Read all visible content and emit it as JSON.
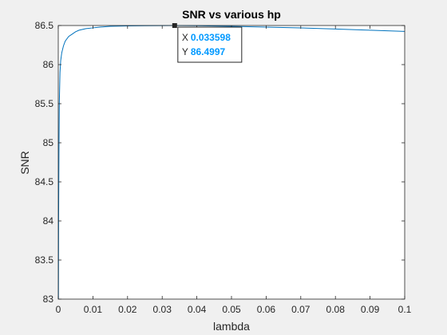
{
  "chart_data": {
    "type": "line",
    "title": "SNR vs various hp",
    "xlabel": "lambda",
    "ylabel": "SNR",
    "xlim": [
      0,
      0.1
    ],
    "ylim": [
      83,
      86.5
    ],
    "x_ticks": [
      "0",
      "0.01",
      "0.02",
      "0.03",
      "0.04",
      "0.05",
      "0.06",
      "0.07",
      "0.08",
      "0.09",
      "0.1"
    ],
    "y_ticks": [
      "83",
      "83.5",
      "84",
      "84.5",
      "85",
      "85.5",
      "86",
      "86.5"
    ],
    "grid": false,
    "series": [
      {
        "color": "#0072bd",
        "x": [
          5e-05,
          0.0001,
          0.0002,
          0.0003,
          0.0005,
          0.0007,
          0.001,
          0.0015,
          0.002,
          0.003,
          0.004,
          0.005,
          0.006,
          0.008,
          0.01,
          0.012,
          0.015,
          0.02,
          0.025,
          0.03,
          0.033598,
          0.04,
          0.05,
          0.06,
          0.07,
          0.08,
          0.09,
          0.1
        ],
        "y": [
          83.0,
          84.0,
          84.9,
          85.5,
          85.9,
          86.05,
          86.15,
          86.24,
          86.3,
          86.36,
          86.39,
          86.42,
          86.44,
          86.46,
          86.47,
          86.48,
          86.49,
          86.495,
          86.498,
          86.499,
          86.4997,
          86.498,
          86.49,
          86.48,
          86.47,
          86.455,
          86.44,
          86.425
        ]
      }
    ],
    "datatip": {
      "x_label": "X",
      "x_value": "0.033598",
      "y_label": "Y",
      "y_value": "86.4997",
      "x": 0.033598,
      "y": 86.4997,
      "value_color": "#0099ff"
    }
  }
}
